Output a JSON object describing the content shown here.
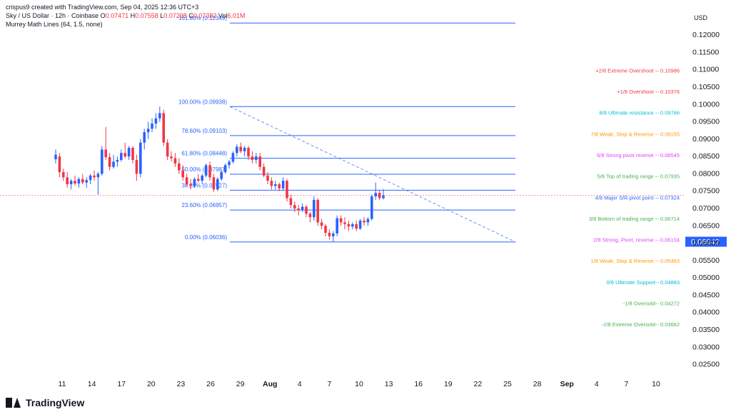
{
  "header": {
    "line1_prefix": "crispus9 created with TradingView.com, Sep 04, 2025 12:36 UTC+3",
    "symbol": "Sky / US Dollar · 12h · Coinbase",
    "o_label": "O",
    "o_value": "0.07471",
    "h_label": "H",
    "h_value": "0.07558",
    "l_label": "L",
    "l_value": "0.07298",
    "c_label": "C",
    "c_value": "0.07382",
    "vol_label": "Vol",
    "vol_value": "6.01M",
    "indicator": "Murrey Math Lines (64, 1.5, none)"
  },
  "currency": "USD",
  "logo_text": "TradingView",
  "colors": {
    "up": "#2962ff",
    "down": "#f23645",
    "fib_line": "#2962ff",
    "price_tag": "#2962ff",
    "current_line": "#f23645"
  },
  "chart_data": {
    "type": "candlestick",
    "ylim": [
      0.021,
      0.126
    ],
    "y_ticks": [
      "0.12000",
      "0.11500",
      "0.11000",
      "0.10500",
      "0.10000",
      "0.09500",
      "0.09000",
      "0.08500",
      "0.08000",
      "0.07500",
      "0.07000",
      "0.06500",
      "0.06000",
      "0.05500",
      "0.05000",
      "0.04500",
      "0.04000",
      "0.03500",
      "0.03000",
      "0.02500"
    ],
    "x_ticks": [
      {
        "label": "11",
        "bold": false
      },
      {
        "label": "14",
        "bold": false
      },
      {
        "label": "17",
        "bold": false
      },
      {
        "label": "20",
        "bold": false
      },
      {
        "label": "23",
        "bold": false
      },
      {
        "label": "26",
        "bold": false
      },
      {
        "label": "29",
        "bold": false
      },
      {
        "label": "Aug",
        "bold": true
      },
      {
        "label": "4",
        "bold": false
      },
      {
        "label": "7",
        "bold": false
      },
      {
        "label": "10",
        "bold": false
      },
      {
        "label": "13",
        "bold": false
      },
      {
        "label": "16",
        "bold": false
      },
      {
        "label": "19",
        "bold": false
      },
      {
        "label": "22",
        "bold": false
      },
      {
        "label": "25",
        "bold": false
      },
      {
        "label": "28",
        "bold": false
      },
      {
        "label": "Sep",
        "bold": true
      },
      {
        "label": "4",
        "bold": false
      },
      {
        "label": "7",
        "bold": false
      },
      {
        "label": "10",
        "bold": false
      }
    ],
    "current_price": "0.06042",
    "fib_levels": [
      {
        "label": "100.00% (0.09938)",
        "value": 0.09938
      },
      {
        "label": "78.60% (0.09103)",
        "value": 0.09103
      },
      {
        "label": "61.80% (0.08448)",
        "value": 0.08448
      },
      {
        "label": "50.00% (0.07987)",
        "value": 0.07987
      },
      {
        "label": "38.20% (0.07527)",
        "value": 0.07527
      },
      {
        "label": "23.60% (0.06957)",
        "value": 0.06957
      },
      {
        "label": "0.00% (0.06036)",
        "value": 0.06036
      },
      {
        "label": "161.80% (0.12349)",
        "value": 0.12349
      }
    ],
    "murrey_lines": [
      {
        "label": "+2/8 Extreme Overshoot -- 0.10986",
        "value": 0.10986,
        "color": "#f23645"
      },
      {
        "label": "+1/8 Overshoot -- 0.10376",
        "value": 0.10376,
        "color": "#f23645"
      },
      {
        "label": "8/8 Ultimate resistance -- 0.09766",
        "value": 0.09766,
        "color": "#00bcd4"
      },
      {
        "label": "7/8 Weak, Stop & Reverse -- 0.09155",
        "value": 0.09155,
        "color": "#ff9800"
      },
      {
        "label": "6/8 Strong pivot reverse -- 0.08545",
        "value": 0.08545,
        "color": "#e040fb"
      },
      {
        "label": "5/8 Top of trading range -- 0.07935",
        "value": 0.07935,
        "color": "#4caf50"
      },
      {
        "label": "4/8 Major S/R pivot point -- 0.07324",
        "value": 0.07324,
        "color": "#2962ff"
      },
      {
        "label": "3/8 Bottom of trading range -- 0.06714",
        "value": 0.06714,
        "color": "#4caf50"
      },
      {
        "label": "2/8 Strong, Pivot, reverse -- 0.06104",
        "value": 0.06104,
        "color": "#e040fb"
      },
      {
        "label": "1/8 Weak, Stop & Reverse -- 0.05493",
        "value": 0.05493,
        "color": "#ff9800"
      },
      {
        "label": "0/8 Ultimate Support-- 0.04883",
        "value": 0.04883,
        "color": "#00bcd4"
      },
      {
        "label": "-1/8 Oversold-- 0.04272",
        "value": 0.04272,
        "color": "#4caf50"
      },
      {
        "label": "-2/8 Extreme Oversold-- 0.03662",
        "value": 0.03662,
        "color": "#4caf50"
      }
    ],
    "candles": [
      [
        0.0842,
        0.087,
        0.083,
        0.0855
      ],
      [
        0.085,
        0.086,
        0.079,
        0.0805
      ],
      [
        0.0805,
        0.0815,
        0.078,
        0.079
      ],
      [
        0.079,
        0.0805,
        0.076,
        0.077
      ],
      [
        0.077,
        0.0785,
        0.0755,
        0.078
      ],
      [
        0.078,
        0.0795,
        0.0765,
        0.0772
      ],
      [
        0.0772,
        0.079,
        0.076,
        0.0785
      ],
      [
        0.0785,
        0.08,
        0.077,
        0.0775
      ],
      [
        0.0775,
        0.079,
        0.076,
        0.0782
      ],
      [
        0.0782,
        0.08,
        0.077,
        0.0795
      ],
      [
        0.0795,
        0.081,
        0.078,
        0.079
      ],
      [
        0.079,
        0.0805,
        0.074,
        0.08
      ],
      [
        0.08,
        0.088,
        0.0795,
        0.087
      ],
      [
        0.087,
        0.0935,
        0.084,
        0.0848
      ],
      [
        0.0848,
        0.086,
        0.081,
        0.082
      ],
      [
        0.082,
        0.0855,
        0.0815,
        0.0835
      ],
      [
        0.0835,
        0.085,
        0.082,
        0.084
      ],
      [
        0.084,
        0.087,
        0.0835,
        0.086
      ],
      [
        0.086,
        0.089,
        0.0845,
        0.085
      ],
      [
        0.085,
        0.088,
        0.084,
        0.0875
      ],
      [
        0.0875,
        0.088,
        0.083,
        0.084
      ],
      [
        0.084,
        0.0855,
        0.078,
        0.08
      ],
      [
        0.08,
        0.09,
        0.079,
        0.089
      ],
      [
        0.089,
        0.093,
        0.087,
        0.092
      ],
      [
        0.092,
        0.095,
        0.09,
        0.093
      ],
      [
        0.093,
        0.096,
        0.092,
        0.0945
      ],
      [
        0.0945,
        0.0975,
        0.093,
        0.096
      ],
      [
        0.096,
        0.0994,
        0.095,
        0.0975
      ],
      [
        0.0975,
        0.0985,
        0.088,
        0.089
      ],
      [
        0.089,
        0.09,
        0.084,
        0.085
      ],
      [
        0.085,
        0.0865,
        0.0835,
        0.0845
      ],
      [
        0.0845,
        0.086,
        0.082,
        0.083
      ],
      [
        0.083,
        0.0845,
        0.08,
        0.081
      ],
      [
        0.081,
        0.0825,
        0.078,
        0.079
      ],
      [
        0.079,
        0.08,
        0.0765,
        0.077
      ],
      [
        0.077,
        0.0785,
        0.0755,
        0.0765
      ],
      [
        0.0765,
        0.079,
        0.076,
        0.0785
      ],
      [
        0.0785,
        0.08,
        0.0775,
        0.078
      ],
      [
        0.078,
        0.08,
        0.077,
        0.0795
      ],
      [
        0.0795,
        0.083,
        0.079,
        0.0825
      ],
      [
        0.0825,
        0.0835,
        0.078,
        0.079
      ],
      [
        0.079,
        0.08,
        0.0748,
        0.0755
      ],
      [
        0.0755,
        0.079,
        0.075,
        0.0785
      ],
      [
        0.0785,
        0.081,
        0.078,
        0.0805
      ],
      [
        0.0805,
        0.083,
        0.08,
        0.0825
      ],
      [
        0.0825,
        0.084,
        0.0815,
        0.0835
      ],
      [
        0.0835,
        0.0865,
        0.083,
        0.086
      ],
      [
        0.086,
        0.0885,
        0.085,
        0.0878
      ],
      [
        0.0878,
        0.089,
        0.086,
        0.0865
      ],
      [
        0.0865,
        0.088,
        0.085,
        0.0875
      ],
      [
        0.0875,
        0.088,
        0.084,
        0.085
      ],
      [
        0.085,
        0.0865,
        0.083,
        0.084
      ],
      [
        0.084,
        0.086,
        0.083,
        0.085
      ],
      [
        0.085,
        0.086,
        0.081,
        0.082
      ],
      [
        0.082,
        0.083,
        0.079,
        0.0795
      ],
      [
        0.0795,
        0.0805,
        0.077,
        0.078
      ],
      [
        0.078,
        0.079,
        0.0755,
        0.0765
      ],
      [
        0.0765,
        0.078,
        0.0755,
        0.077
      ],
      [
        0.077,
        0.0775,
        0.075,
        0.0758
      ],
      [
        0.0758,
        0.079,
        0.0752,
        0.078
      ],
      [
        0.078,
        0.0785,
        0.072,
        0.073
      ],
      [
        0.073,
        0.074,
        0.07,
        0.071
      ],
      [
        0.071,
        0.072,
        0.069,
        0.07
      ],
      [
        0.07,
        0.071,
        0.068,
        0.0695
      ],
      [
        0.0695,
        0.0715,
        0.069,
        0.0705
      ],
      [
        0.0705,
        0.071,
        0.0675,
        0.0685
      ],
      [
        0.0685,
        0.069,
        0.066,
        0.0675
      ],
      [
        0.0675,
        0.0735,
        0.0665,
        0.0725
      ],
      [
        0.0725,
        0.073,
        0.065,
        0.066
      ],
      [
        0.066,
        0.067,
        0.064,
        0.065
      ],
      [
        0.065,
        0.0655,
        0.062,
        0.063
      ],
      [
        0.063,
        0.064,
        0.061,
        0.062
      ],
      [
        0.062,
        0.0635,
        0.0604,
        0.0628
      ],
      [
        0.0628,
        0.068,
        0.062,
        0.0672
      ],
      [
        0.0672,
        0.068,
        0.065,
        0.066
      ],
      [
        0.066,
        0.0675,
        0.064,
        0.0655
      ],
      [
        0.0655,
        0.0665,
        0.0635,
        0.0648
      ],
      [
        0.0648,
        0.066,
        0.064,
        0.0655
      ],
      [
        0.0655,
        0.0665,
        0.0635,
        0.0642
      ],
      [
        0.0642,
        0.067,
        0.0638,
        0.0665
      ],
      [
        0.0665,
        0.0675,
        0.065,
        0.066
      ],
      [
        0.066,
        0.0675,
        0.065,
        0.067
      ],
      [
        0.067,
        0.074,
        0.0665,
        0.0735
      ],
      [
        0.0735,
        0.0775,
        0.0725,
        0.0745
      ],
      [
        0.0745,
        0.0752,
        0.0725,
        0.073
      ],
      [
        0.073,
        0.0756,
        0.0726,
        0.0738
      ]
    ]
  }
}
